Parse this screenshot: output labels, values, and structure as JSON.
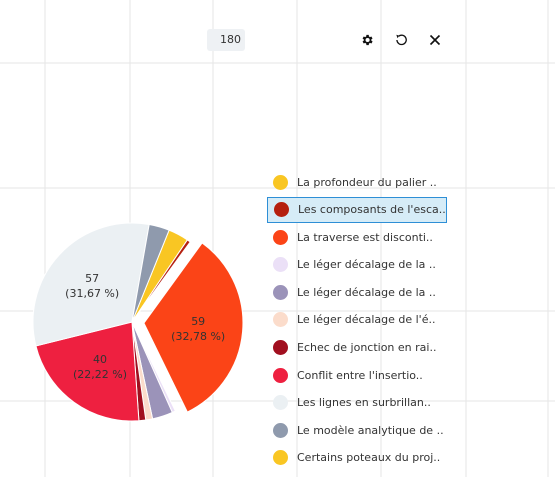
{
  "toolbar": {
    "total_value": "180",
    "settings_icon": "gear-icon",
    "reset_icon": "reset-icon",
    "close_icon": "close-icon"
  },
  "chart_data": {
    "type": "pie",
    "total": 180,
    "slices": [
      {
        "label": "La profondeur du palier ..",
        "value": 6,
        "color": "#f9c623"
      },
      {
        "label": "Les composants de l'esca..",
        "value": 1,
        "color": "#b5200f",
        "exploded": false,
        "selected": true
      },
      {
        "label": "La traverse est disconti..",
        "value": 59,
        "color": "#fb4417",
        "exploded": true,
        "label_text": "59",
        "percent_text": "(32,78 %)"
      },
      {
        "label": "Le léger décalage de la ..",
        "value": 1,
        "color": "#ebe0f7"
      },
      {
        "label": "Le léger décalage de la ..",
        "value": 6,
        "color": "#9b93b9"
      },
      {
        "label": "Le léger décalage de l'é..",
        "value": 2,
        "color": "#fbdccb"
      },
      {
        "label": "Echec de jonction en rai..",
        "value": 2,
        "color": "#a10f1f"
      },
      {
        "label": "Conflit entre l'insertio..",
        "value": 40,
        "color": "#ee2040",
        "label_text": "40",
        "percent_text": "(22,22 %)"
      },
      {
        "label": "Les lignes en surbrillan..",
        "value": 57,
        "color": "#ebf0f3",
        "label_text": "57",
        "percent_text": "(31,67 %)"
      },
      {
        "label": "Le modèle analytique de ..",
        "value": 6,
        "color": "#8f9aad"
      },
      {
        "label": "Certains poteaux du proj..",
        "value": 0,
        "color": "#f9c623"
      }
    ],
    "legend_position": "right",
    "grid": true
  }
}
